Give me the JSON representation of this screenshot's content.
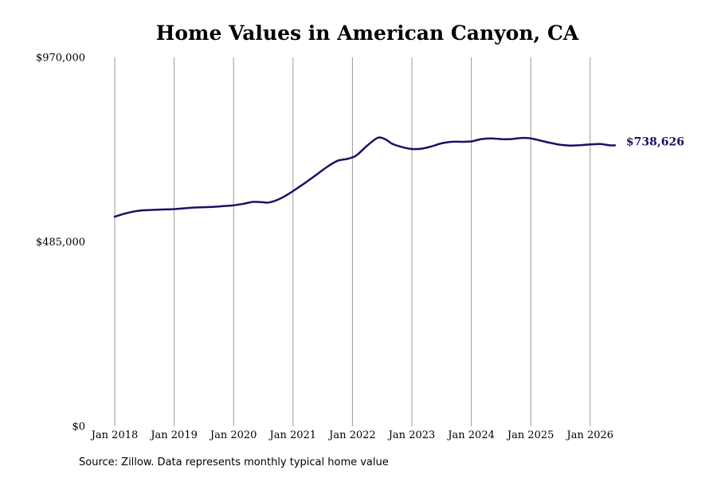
{
  "chart_data": {
    "type": "line",
    "title": "Home Values in American Canyon, CA",
    "source": "Source: Zillow. Data represents monthly typical home value",
    "ylim": [
      0,
      970000
    ],
    "y_ticks": [
      0,
      485000,
      970000
    ],
    "y_tick_labels": [
      "$0",
      "$485,000",
      "$970,000"
    ],
    "x_ticks": [
      "2018-01",
      "2019-01",
      "2020-01",
      "2021-01",
      "2022-01",
      "2023-01",
      "2024-01",
      "2025-01",
      "2026-01"
    ],
    "x_tick_labels": [
      "Jan 2018",
      "Jan 2019",
      "Jan 2020",
      "Jan 2021",
      "Jan 2022",
      "Jan 2023",
      "Jan 2024",
      "Jan 2025",
      "Jan 2026"
    ],
    "grid": "vertical",
    "end_label": "$738,626",
    "colors": {
      "line": "#141464",
      "grid": "#999999",
      "end_label": "#141464"
    },
    "series": [
      {
        "points": [
          [
            "2018-01",
            551000
          ],
          [
            "2018-03",
            559000
          ],
          [
            "2018-05",
            565000
          ],
          [
            "2018-07",
            568000
          ],
          [
            "2018-09",
            569000
          ],
          [
            "2018-11",
            570000
          ],
          [
            "2019-01",
            571000
          ],
          [
            "2019-03",
            573000
          ],
          [
            "2019-05",
            575000
          ],
          [
            "2019-07",
            576000
          ],
          [
            "2019-09",
            577000
          ],
          [
            "2019-11",
            579000
          ],
          [
            "2020-01",
            581000
          ],
          [
            "2020-03",
            585000
          ],
          [
            "2020-05",
            590000
          ],
          [
            "2020-07",
            589000
          ],
          [
            "2020-08",
            588000
          ],
          [
            "2020-10",
            596000
          ],
          [
            "2020-12",
            610000
          ],
          [
            "2021-02",
            627000
          ],
          [
            "2021-04",
            645000
          ],
          [
            "2021-06",
            664000
          ],
          [
            "2021-08",
            683000
          ],
          [
            "2021-10",
            698000
          ],
          [
            "2021-12",
            703000
          ],
          [
            "2022-01",
            707000
          ],
          [
            "2022-02",
            714000
          ],
          [
            "2022-04",
            738000
          ],
          [
            "2022-06",
            758000
          ],
          [
            "2022-07",
            758000
          ],
          [
            "2022-08",
            752000
          ],
          [
            "2022-09",
            743000
          ],
          [
            "2022-11",
            734000
          ],
          [
            "2023-01",
            729000
          ],
          [
            "2023-03",
            730000
          ],
          [
            "2023-05",
            736000
          ],
          [
            "2023-07",
            744000
          ],
          [
            "2023-09",
            748000
          ],
          [
            "2023-11",
            748000
          ],
          [
            "2024-01",
            749000
          ],
          [
            "2024-03",
            755000
          ],
          [
            "2024-05",
            757000
          ],
          [
            "2024-07",
            755000
          ],
          [
            "2024-09",
            755000
          ],
          [
            "2024-11",
            758000
          ],
          [
            "2025-01",
            757000
          ],
          [
            "2025-03",
            751000
          ],
          [
            "2025-05",
            745000
          ],
          [
            "2025-07",
            740000
          ],
          [
            "2025-09",
            738000
          ],
          [
            "2025-11",
            739000
          ],
          [
            "2026-01",
            741000
          ],
          [
            "2026-03",
            742000
          ],
          [
            "2026-05",
            738626
          ],
          [
            "2026-06",
            738626
          ]
        ]
      }
    ]
  }
}
